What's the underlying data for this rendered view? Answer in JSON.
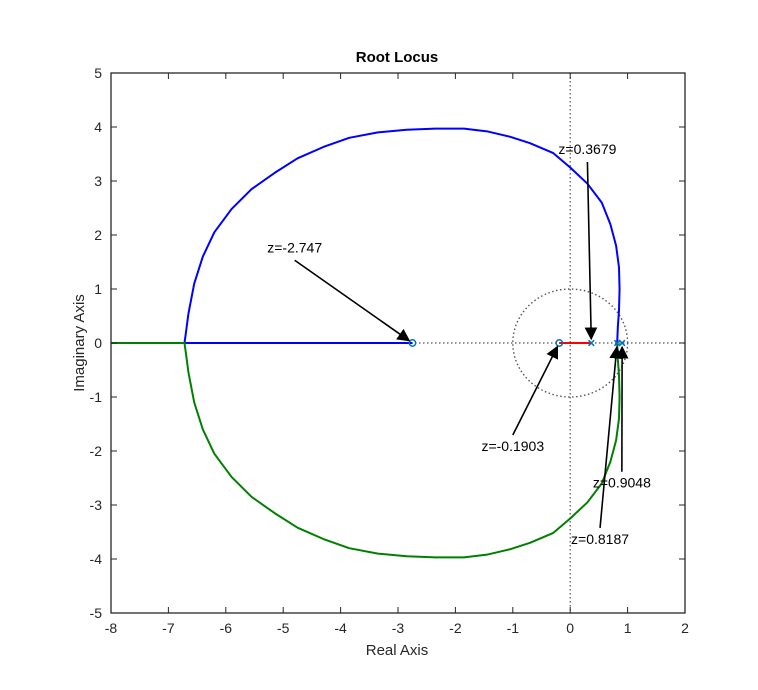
{
  "chart_data": {
    "type": "line",
    "title": "Root Locus",
    "xlabel": "Real Axis",
    "ylabel": "Imaginary Axis",
    "xlim": [
      -8,
      2
    ],
    "ylim": [
      -5,
      5
    ],
    "xticks": [
      -8,
      -7,
      -6,
      -5,
      -4,
      -3,
      -2,
      -1,
      0,
      1,
      2
    ],
    "yticks": [
      -5,
      -4,
      -3,
      -2,
      -1,
      0,
      1,
      2,
      3,
      4,
      5
    ],
    "grid": false,
    "unit_circle": true,
    "colors": {
      "blue": "#0000ff",
      "green": "#008000",
      "red": "#ff0000",
      "marker": "#0072bd",
      "axes": "#262626",
      "dotted": "#555555"
    },
    "series": [
      {
        "color": "blue",
        "x": [
          0.8187,
          0.83,
          0.85,
          0.86,
          0.85,
          0.8,
          0.7,
          0.55,
          0.3,
          0.0,
          -0.3,
          -0.7,
          -1.05,
          -1.45,
          -1.85,
          -2.35,
          -2.85,
          -3.35,
          -3.85,
          -4.3,
          -4.75,
          -5.15,
          -5.55,
          -5.9,
          -6.2,
          -6.4,
          -6.55,
          -6.65,
          -6.7,
          -6.72,
          -6.68,
          -6.5,
          -6.0,
          -5.0,
          -4.0,
          -3.5,
          -3.0,
          -2.747
        ],
        "y": [
          0,
          0.3,
          0.6,
          1.0,
          1.4,
          1.8,
          2.2,
          2.6,
          2.95,
          3.25,
          3.52,
          3.7,
          3.82,
          3.92,
          3.97,
          3.97,
          3.95,
          3.9,
          3.8,
          3.63,
          3.42,
          3.15,
          2.85,
          2.48,
          2.05,
          1.6,
          1.1,
          0.55,
          0.15,
          0,
          0,
          0,
          0,
          0,
          0,
          0,
          0,
          0
        ]
      },
      {
        "color": "green",
        "x": [
          0.8187,
          0.83,
          0.85,
          0.86,
          0.85,
          0.8,
          0.7,
          0.55,
          0.3,
          0.0,
          -0.3,
          -0.7,
          -1.05,
          -1.45,
          -1.85,
          -2.35,
          -2.85,
          -3.35,
          -3.85,
          -4.3,
          -4.75,
          -5.15,
          -5.55,
          -5.9,
          -6.2,
          -6.4,
          -6.55,
          -6.65,
          -6.7,
          -6.72,
          -7.2,
          -7.7,
          -8.0
        ],
        "y": [
          0,
          -0.3,
          -0.6,
          -1.0,
          -1.4,
          -1.8,
          -2.2,
          -2.6,
          -2.95,
          -3.25,
          -3.52,
          -3.7,
          -3.82,
          -3.92,
          -3.97,
          -3.97,
          -3.95,
          -3.9,
          -3.8,
          -3.63,
          -3.42,
          -3.15,
          -2.85,
          -2.48,
          -2.05,
          -1.6,
          -1.1,
          -0.55,
          -0.15,
          0,
          0,
          0,
          0
        ]
      },
      {
        "color": "red",
        "x": [
          -0.1903,
          0.3679
        ],
        "y": [
          0,
          0
        ]
      }
    ],
    "zeros": [
      {
        "x": -2.747,
        "y": 0
      },
      {
        "x": -0.1903,
        "y": 0
      }
    ],
    "poles": [
      {
        "x": 0.3679,
        "y": 0
      },
      {
        "x": 0.8187,
        "y": 0
      },
      {
        "x": 0.9048,
        "y": 0
      }
    ],
    "annotations": [
      {
        "text": "z=-2.747",
        "x": -2.747,
        "y": 0,
        "text_x": -4.8,
        "text_y": 1.68
      },
      {
        "text": "z=0.3679",
        "x": 0.3679,
        "y": 0,
        "text_x": 0.3,
        "text_y": 3.5
      },
      {
        "text": "z=-0.1903",
        "x": -0.1903,
        "y": 0,
        "text_x": -1.0,
        "text_y": -2.0
      },
      {
        "text": "z=0.9048",
        "x": 0.9048,
        "y": 0,
        "text_x": 0.9,
        "text_y": -2.68
      },
      {
        "text": "z=0.8187",
        "x": 0.8187,
        "y": 0,
        "text_x": 0.52,
        "text_y": -3.72
      }
    ]
  }
}
